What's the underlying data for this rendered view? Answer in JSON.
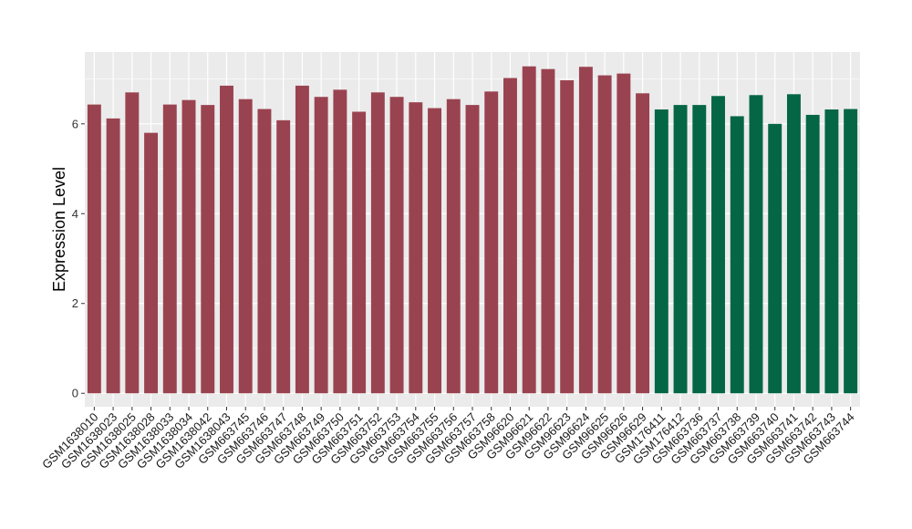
{
  "chart_data": {
    "type": "bar",
    "title": "",
    "xlabel": "",
    "ylabel": "Expression Level",
    "ylim": [
      -0.3,
      7.6
    ],
    "yticks": [
      0,
      2,
      4,
      6
    ],
    "grid": true,
    "categories": [
      "GSM1638010",
      "GSM1638023",
      "GSM1638025",
      "GSM1638028",
      "GSM1638033",
      "GSM1638034",
      "GSM1638042",
      "GSM1638043",
      "GSM663745",
      "GSM663746",
      "GSM663747",
      "GSM663748",
      "GSM663749",
      "GSM663750",
      "GSM663751",
      "GSM663752",
      "GSM663753",
      "GSM663754",
      "GSM663755",
      "GSM663756",
      "GSM663757",
      "GSM663758",
      "GSM96620",
      "GSM96621",
      "GSM96622",
      "GSM96623",
      "GSM96624",
      "GSM96625",
      "GSM96626",
      "GSM96629",
      "GSM176411",
      "GSM176412",
      "GSM663736",
      "GSM663737",
      "GSM663738",
      "GSM663739",
      "GSM663740",
      "GSM663741",
      "GSM663742",
      "GSM663743",
      "GSM663744"
    ],
    "values": [
      6.43,
      6.12,
      6.7,
      5.8,
      6.43,
      6.53,
      6.42,
      6.85,
      6.55,
      6.33,
      6.08,
      6.85,
      6.6,
      6.76,
      6.27,
      6.7,
      6.6,
      6.48,
      6.35,
      6.55,
      6.42,
      6.72,
      7.02,
      7.28,
      7.22,
      6.97,
      7.27,
      7.08,
      7.12,
      6.68,
      6.32,
      6.42,
      6.42,
      6.62,
      6.17,
      6.64,
      6.0,
      6.66,
      6.2,
      6.32,
      6.33
    ],
    "groups": [
      0,
      0,
      0,
      0,
      0,
      0,
      0,
      0,
      0,
      0,
      0,
      0,
      0,
      0,
      0,
      0,
      0,
      0,
      0,
      0,
      0,
      0,
      0,
      0,
      0,
      0,
      0,
      0,
      0,
      0,
      1,
      1,
      1,
      1,
      1,
      1,
      1,
      1,
      1,
      1,
      1
    ],
    "colors": {
      "group_0": "#9a4350",
      "group_1": "#056646",
      "panel_background": "#ebebeb",
      "gridline": "#ffffff"
    }
  }
}
